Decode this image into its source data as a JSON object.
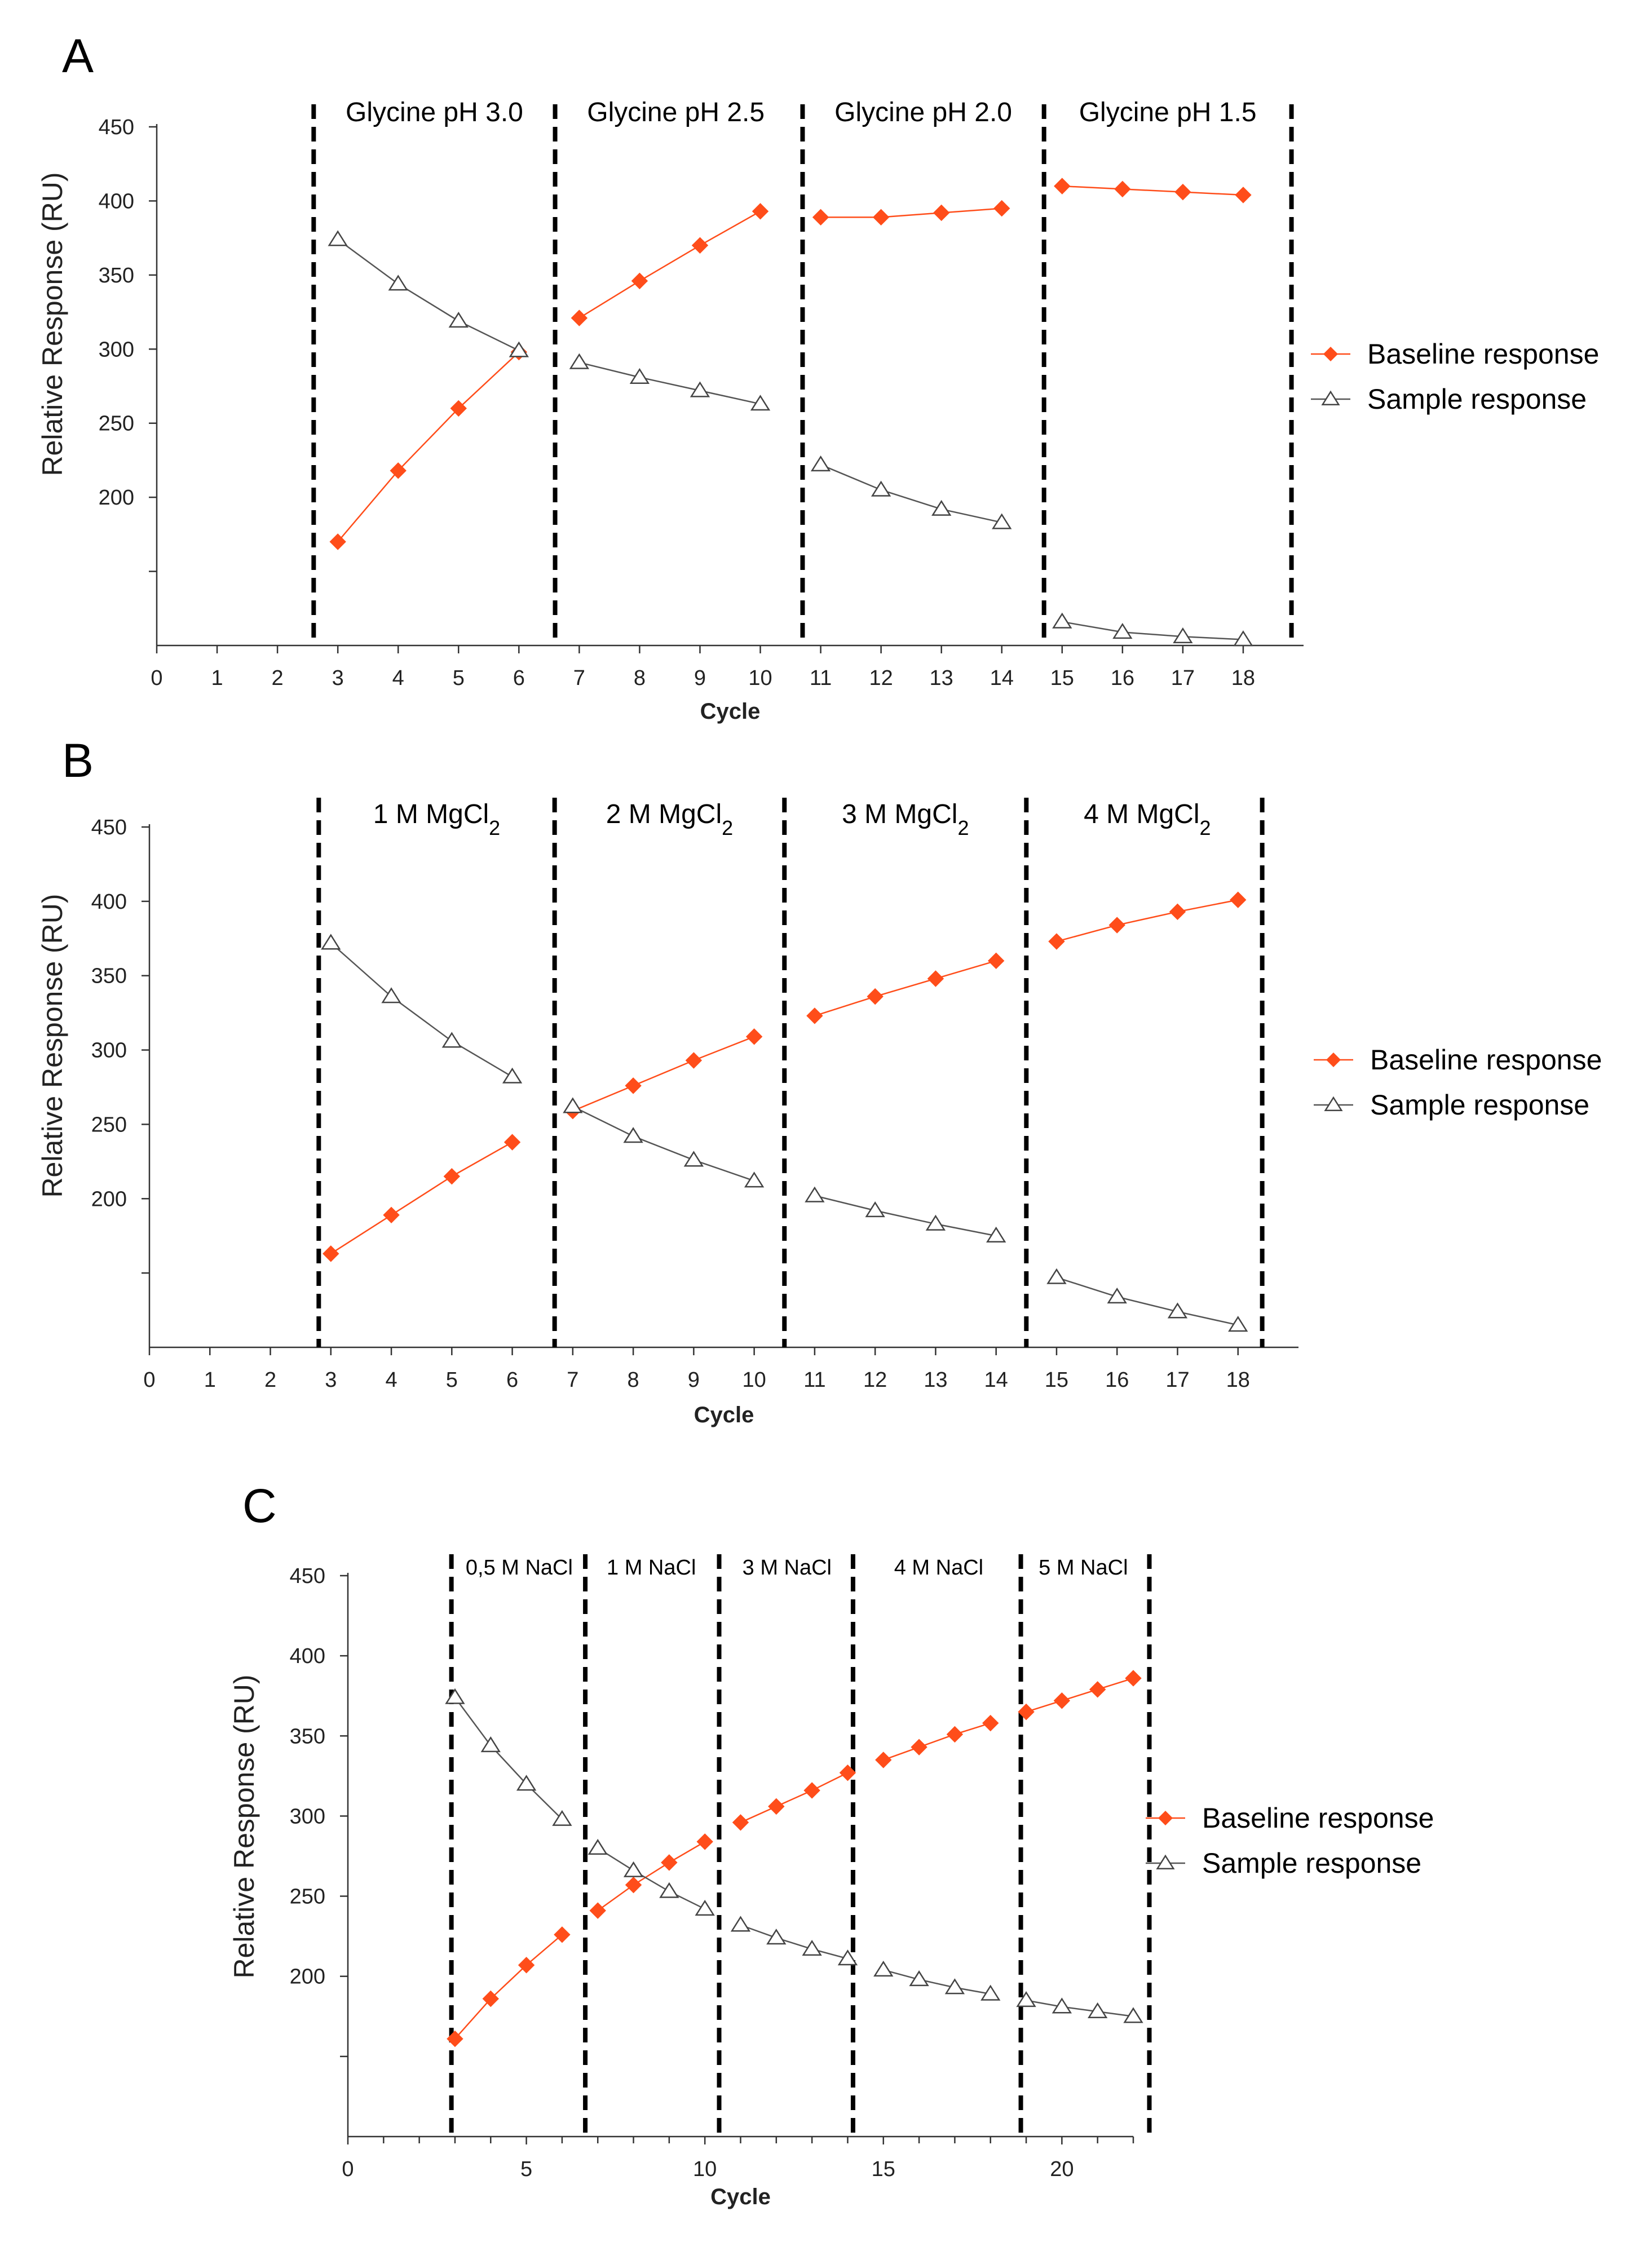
{
  "colors": {
    "baseline": "#ff4d1a",
    "sample": "#555555",
    "axis": "#333333",
    "divider": "#000000"
  },
  "chart_data": [
    {
      "panel": "A",
      "type": "line",
      "xlabel": "Cycle",
      "ylabel": "Relative Response (RU)",
      "xlim": [
        0,
        19
      ],
      "ylim": [
        100,
        450
      ],
      "xticks": [
        0,
        1,
        2,
        3,
        4,
        5,
        6,
        7,
        8,
        9,
        10,
        11,
        12,
        13,
        14,
        15,
        16,
        17,
        18
      ],
      "yticks": [
        200,
        250,
        300,
        350,
        400,
        450
      ],
      "minor_yticks": [
        150
      ],
      "dividers": [
        2.6,
        6.6,
        10.7,
        14.7,
        18.8
      ],
      "segments": [
        {
          "label": "Glycine pH 3.0",
          "x": 4.6
        },
        {
          "label": "Glycine pH 2.5",
          "x": 8.6
        },
        {
          "label": "Glycine pH 2.0",
          "x": 12.7
        },
        {
          "label": "Glycine pH 1.5",
          "x": 16.75
        }
      ],
      "legend": {
        "position": "right"
      },
      "series": [
        {
          "name": "Baseline response",
          "marker": "diamond",
          "groups": [
            {
              "x": [
                3,
                4,
                5,
                6
              ],
              "y": [
                170,
                218,
                260,
                298
              ]
            },
            {
              "x": [
                7,
                8,
                9,
                10
              ],
              "y": [
                321,
                346,
                370,
                393
              ]
            },
            {
              "x": [
                11,
                12,
                13,
                14
              ],
              "y": [
                389,
                389,
                392,
                395
              ]
            },
            {
              "x": [
                15,
                16,
                17,
                18
              ],
              "y": [
                410,
                408,
                406,
                404
              ]
            }
          ]
        },
        {
          "name": "Sample response",
          "marker": "triangle",
          "groups": [
            {
              "x": [
                3,
                4,
                5,
                6
              ],
              "y": [
                374,
                344,
                319,
                299
              ]
            },
            {
              "x": [
                7,
                8,
                9,
                10
              ],
              "y": [
                291,
                281,
                272,
                263
              ]
            },
            {
              "x": [
                11,
                12,
                13,
                14
              ],
              "y": [
                222,
                205,
                192,
                183
              ]
            },
            {
              "x": [
                15,
                16,
                17,
                18
              ],
              "y": [
                116,
                109,
                106,
                104
              ]
            }
          ]
        }
      ]
    },
    {
      "panel": "B",
      "type": "line",
      "xlabel": "Cycle",
      "ylabel": "Relative Response (RU)",
      "xlim": [
        0,
        19
      ],
      "ylim": [
        100,
        450
      ],
      "xticks": [
        0,
        1,
        2,
        3,
        4,
        5,
        6,
        7,
        8,
        9,
        10,
        11,
        12,
        13,
        14,
        15,
        16,
        17,
        18
      ],
      "yticks": [
        200,
        250,
        300,
        350,
        400,
        450
      ],
      "minor_yticks": [
        150
      ],
      "dividers": [
        2.8,
        6.7,
        10.5,
        14.5,
        18.4
      ],
      "segments": [
        {
          "label": "1 M MgCl",
          "sub": "2",
          "x": 4.75
        },
        {
          "label": "2 M MgCl",
          "sub": "2",
          "x": 8.6
        },
        {
          "label": "3 M MgCl",
          "sub": "2",
          "x": 12.5
        },
        {
          "label": "4 M MgCl",
          "sub": "2",
          "x": 16.5
        }
      ],
      "legend": {
        "position": "right"
      },
      "series": [
        {
          "name": "Baseline response",
          "marker": "diamond",
          "groups": [
            {
              "x": [
                3,
                4,
                5,
                6
              ],
              "y": [
                163,
                189,
                215,
                238
              ]
            },
            {
              "x": [
                7,
                8,
                9,
                10
              ],
              "y": [
                259,
                276,
                293,
                309
              ]
            },
            {
              "x": [
                11,
                12,
                13,
                14
              ],
              "y": [
                323,
                336,
                348,
                360
              ]
            },
            {
              "x": [
                15,
                16,
                17,
                18
              ],
              "y": [
                373,
                384,
                393,
                401
              ]
            }
          ]
        },
        {
          "name": "Sample response",
          "marker": "triangle",
          "groups": [
            {
              "x": [
                3,
                4,
                5,
                6
              ],
              "y": [
                372,
                336,
                306,
                282
              ]
            },
            {
              "x": [
                7,
                8,
                9,
                10
              ],
              "y": [
                262,
                242,
                226,
                212
              ]
            },
            {
              "x": [
                11,
                12,
                13,
                14
              ],
              "y": [
                202,
                192,
                183,
                175
              ]
            },
            {
              "x": [
                15,
                16,
                17,
                18
              ],
              "y": [
                147,
                134,
                124,
                115
              ]
            }
          ]
        }
      ]
    },
    {
      "panel": "C",
      "type": "line",
      "xlabel": "Cycle",
      "ylabel": "Relative Response (RU)",
      "xlim": [
        0,
        22
      ],
      "ylim": [
        100,
        450
      ],
      "xticks": [
        0,
        5,
        10,
        15,
        20
      ],
      "minor_xticks": [
        1,
        2,
        3,
        4,
        6,
        7,
        8,
        9,
        11,
        12,
        13,
        14,
        16,
        17,
        18,
        19,
        21,
        22
      ],
      "yticks": [
        200,
        250,
        300,
        350,
        400,
        450
      ],
      "minor_yticks": [
        150
      ],
      "dividers": [
        2.9,
        6.65,
        10.4,
        14.15,
        18.85,
        22.45
      ],
      "segments": [
        {
          "label": "0,5 M NaCl",
          "x": 4.8
        },
        {
          "label": "1 M NaCl",
          "x": 8.5
        },
        {
          "label": "3 M NaCl",
          "x": 12.3
        },
        {
          "label": "4 M NaCl",
          "x": 16.55
        },
        {
          "label": "5 M NaCl",
          "x": 20.6
        }
      ],
      "legend": {
        "position": "right"
      },
      "series": [
        {
          "name": "Baseline response",
          "marker": "diamond",
          "groups": [
            {
              "x": [
                3,
                4,
                5,
                6
              ],
              "y": [
                161,
                186,
                207,
                226
              ]
            },
            {
              "x": [
                7,
                8,
                9,
                10
              ],
              "y": [
                241,
                257,
                271,
                284
              ]
            },
            {
              "x": [
                11,
                12,
                13,
                14
              ],
              "y": [
                296,
                306,
                316,
                327
              ]
            },
            {
              "x": [
                15,
                16,
                17,
                18
              ],
              "y": [
                335,
                343,
                351,
                358
              ]
            },
            {
              "x": [
                19,
                20,
                21,
                22
              ],
              "y": [
                365,
                372,
                379,
                386
              ]
            }
          ]
        },
        {
          "name": "Sample response",
          "marker": "triangle",
          "groups": [
            {
              "x": [
                3,
                4,
                5,
                6
              ],
              "y": [
                374,
                344,
                320,
                298
              ]
            },
            {
              "x": [
                7,
                8,
                9,
                10
              ],
              "y": [
                280,
                266,
                253,
                242
              ]
            },
            {
              "x": [
                11,
                12,
                13,
                14
              ],
              "y": [
                232,
                224,
                217,
                211
              ]
            },
            {
              "x": [
                15,
                16,
                17,
                18
              ],
              "y": [
                204,
                198,
                193,
                189
              ]
            },
            {
              "x": [
                19,
                20,
                21,
                22
              ],
              "y": [
                185,
                181,
                178,
                175
              ]
            }
          ]
        }
      ]
    }
  ]
}
